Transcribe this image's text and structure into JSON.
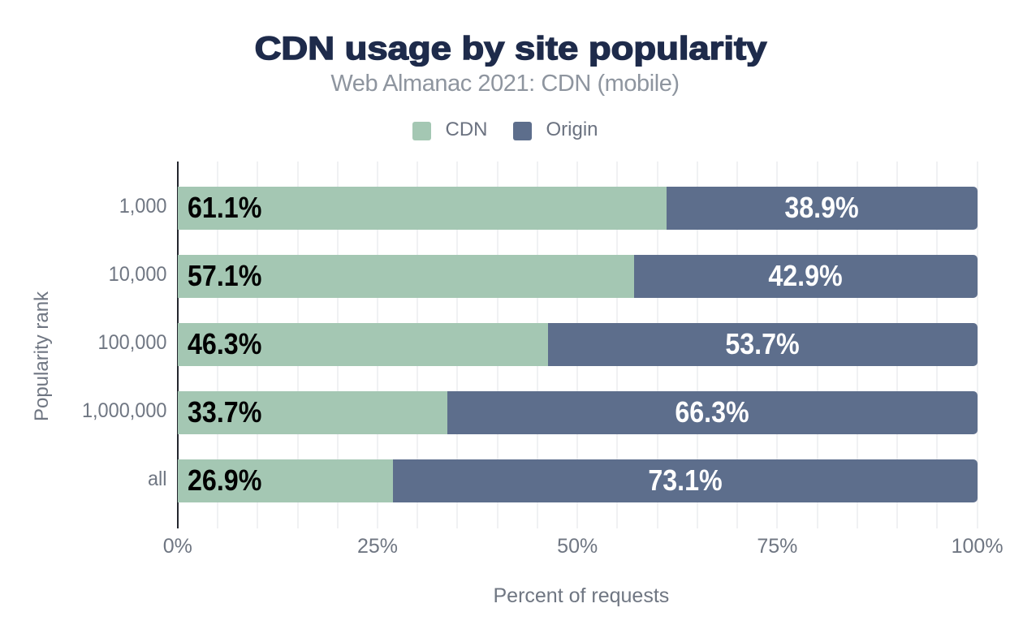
{
  "chart_data": {
    "type": "bar",
    "orientation": "horizontal",
    "stacked": true,
    "title": "CDN usage by site popularity",
    "subtitle": "Web Almanac 2021: CDN (mobile)",
    "xlabel": "Percent of requests",
    "ylabel": "Popularity rank",
    "categories": [
      "1,000",
      "10,000",
      "100,000",
      "1,000,000",
      "all"
    ],
    "series": [
      {
        "name": "CDN",
        "color": "#a4c7b3",
        "values": [
          61.1,
          57.1,
          46.3,
          33.7,
          26.9
        ]
      },
      {
        "name": "Origin",
        "color": "#5d6e8c",
        "values": [
          38.9,
          42.9,
          53.7,
          66.3,
          73.1
        ]
      }
    ],
    "value_labels": [
      [
        "61.1%",
        "38.9%"
      ],
      [
        "57.1%",
        "42.9%"
      ],
      [
        "46.3%",
        "53.7%"
      ],
      [
        "33.7%",
        "66.3%"
      ],
      [
        "26.9%",
        "73.1%"
      ]
    ],
    "x_ticks": [
      {
        "label": "0%",
        "value": 0
      },
      {
        "label": "25%",
        "value": 25
      },
      {
        "label": "50%",
        "value": 50
      },
      {
        "label": "75%",
        "value": 75
      },
      {
        "label": "100%",
        "value": 100
      }
    ],
    "xlim": [
      0,
      100
    ],
    "grid": {
      "vertical_step_percent": 5,
      "color": "#f0f1f3"
    },
    "legend_position": "top",
    "colors": {
      "title": "#1e2b4b",
      "subtitle": "#8e959f",
      "axis_text": "#6f7682",
      "legend_text": "#6b7280",
      "axis_line": "#23262e",
      "bar_label_on_first": "#000000",
      "bar_label_on_rest": "#ffffff",
      "background": "#ffffff"
    }
  }
}
